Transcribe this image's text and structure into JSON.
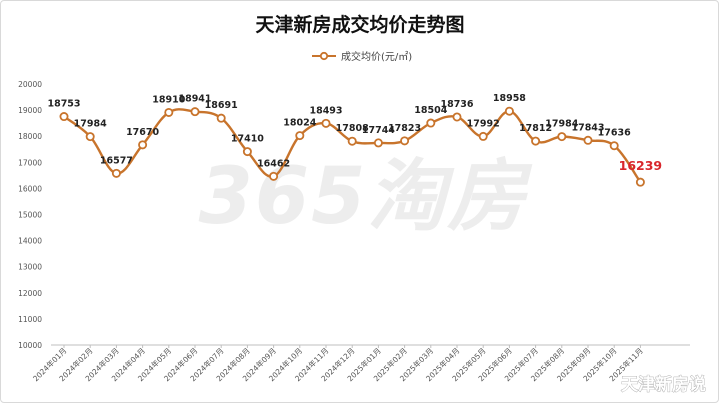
{
  "chart_data": {
    "type": "line",
    "title": "天津新房成交均价走势图",
    "legend": {
      "label": "成交均价(元/㎡)",
      "placement": "top-center"
    },
    "series": [
      {
        "name": "成交均价(元/㎡)",
        "x": [
          "2024年01月",
          "2024年02月",
          "2024年03月",
          "2024年04月",
          "2024年05月",
          "2024年06月",
          "2024年07月",
          "2024年08月",
          "2024年09月",
          "2024年10月",
          "2024年11月",
          "2024年12月",
          "2025年01月",
          "2025年02月",
          "2025年03月",
          "2025年04月",
          "2025年05月",
          "2025年06月",
          "2025年07月",
          "2025年08月",
          "2025年09月",
          "2025年10月",
          "2025年11月"
        ],
        "values": [
          18753,
          17984,
          16577,
          17670,
          18910,
          18941,
          18691,
          17410,
          16462,
          18024,
          18493,
          17808,
          17744,
          17823,
          18504,
          18736,
          17992,
          18958,
          17812,
          17984,
          17843,
          17636,
          16239
        ],
        "highlight_last": true
      }
    ],
    "yticks": [
      10000,
      11000,
      12000,
      13000,
      14000,
      15000,
      16000,
      17000,
      18000,
      19000,
      20000
    ],
    "ylim": [
      10000,
      20000
    ],
    "grid": false,
    "xlabel": "",
    "ylabel": ""
  },
  "colors": {
    "line": "#c8742c",
    "marker_fill": "#ffffff",
    "label": "#222222",
    "highlight_label": "#d9262c",
    "axis_text": "#555555",
    "title": "#111111",
    "watermark": "#ededed"
  },
  "watermark": {
    "main": "365淘房",
    "corner": "天津新房说"
  }
}
